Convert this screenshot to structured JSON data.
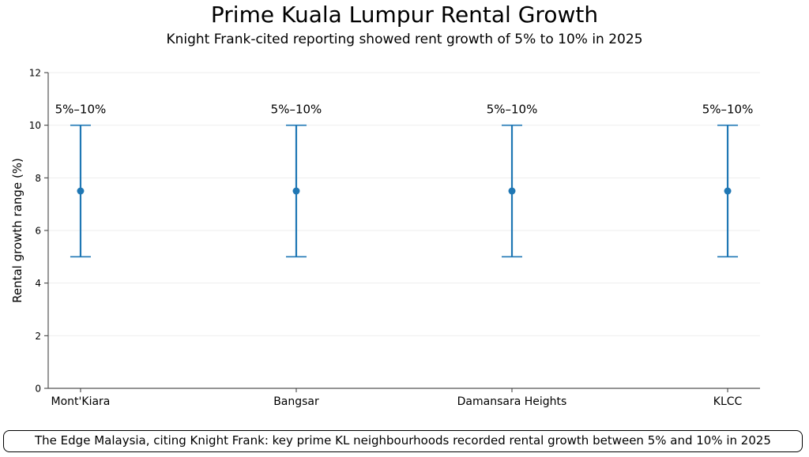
{
  "title": "Prime Kuala Lumpur Rental Growth",
  "subtitle": "Knight Frank-cited reporting showed rent growth of 5% to 10% in 2025",
  "caption": "The Edge Malaysia, citing Knight Frank: key prime KL neighbourhoods recorded rental growth between 5% and 10% in 2025",
  "chart_data": {
    "type": "errorbar",
    "title": "Prime Kuala Lumpur Rental Growth",
    "subtitle": "Knight Frank-cited reporting showed rent growth of 5% to 10% in 2025",
    "xlabel": "",
    "ylabel": "Rental growth range (%)",
    "ylim": [
      0,
      12
    ],
    "yticks": [
      0,
      2,
      4,
      6,
      8,
      10,
      12
    ],
    "grid": "horizontal",
    "color": "#1f77b4",
    "categories": [
      "Mont'Kiara",
      "Bangsar",
      "Damansara Heights",
      "KLCC"
    ],
    "low": [
      5,
      5,
      5,
      5
    ],
    "high": [
      10,
      10,
      10,
      10
    ],
    "mid": [
      7.5,
      7.5,
      7.5,
      7.5
    ],
    "labels": [
      "5%–10%",
      "5%–10%",
      "5%–10%",
      "5%–10%"
    ]
  }
}
